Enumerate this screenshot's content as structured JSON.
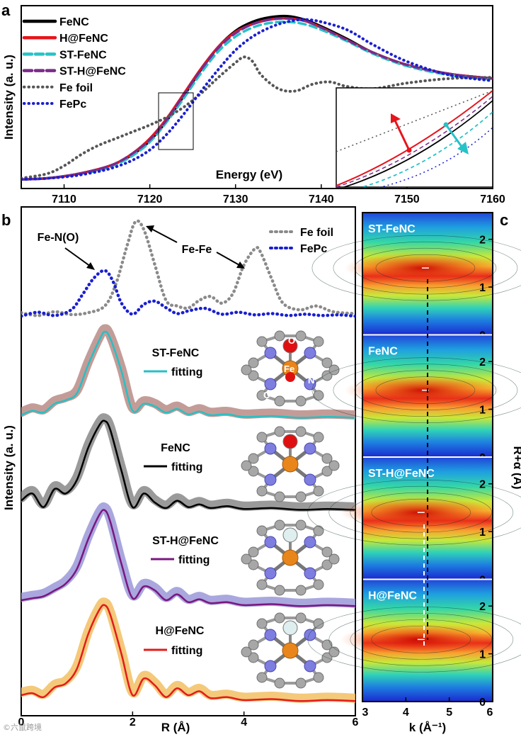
{
  "figure": {
    "panel_labels": [
      "a",
      "b",
      "c"
    ],
    "watermark": "©六鼠跨境"
  },
  "chart_data": [
    {
      "panel": "a",
      "type": "line",
      "xlabel": "Energy (eV)",
      "ylabel": "Intensity (a. u.)",
      "xlim": [
        7105,
        7160
      ],
      "ylim": [
        0,
        1.55
      ],
      "xticks": [
        7110,
        7120,
        7130,
        7140,
        7150,
        7160
      ],
      "legend": "top-left",
      "inset": "zoomed pre-edge region (boxed area)",
      "series": [
        {
          "name": "FeNC",
          "color": "#000000",
          "style": "solid",
          "x": [
            7105,
            7108,
            7111,
            7114,
            7116,
            7118,
            7120,
            7122,
            7124,
            7126,
            7128,
            7130,
            7132,
            7134,
            7136,
            7138,
            7140,
            7143,
            7146,
            7150,
            7155,
            7160
          ],
          "y": [
            0.08,
            0.09,
            0.12,
            0.17,
            0.22,
            0.3,
            0.42,
            0.6,
            0.82,
            1.05,
            1.25,
            1.39,
            1.47,
            1.51,
            1.52,
            1.49,
            1.43,
            1.32,
            1.2,
            1.09,
            1.01,
            0.97
          ]
        },
        {
          "name": "H@FeNC",
          "color": "#e8141c",
          "style": "solid",
          "x": [
            7105,
            7108,
            7111,
            7114,
            7116,
            7118,
            7120,
            7122,
            7124,
            7126,
            7128,
            7130,
            7132,
            7134,
            7136,
            7138,
            7140,
            7143,
            7146,
            7150,
            7155,
            7160
          ],
          "y": [
            0.08,
            0.09,
            0.12,
            0.17,
            0.22,
            0.31,
            0.44,
            0.62,
            0.84,
            1.06,
            1.25,
            1.38,
            1.45,
            1.49,
            1.5,
            1.48,
            1.42,
            1.31,
            1.2,
            1.09,
            1.01,
            0.97
          ]
        },
        {
          "name": "ST-FeNC",
          "color": "#26c2c8",
          "style": "dashed",
          "x": [
            7105,
            7108,
            7111,
            7114,
            7116,
            7118,
            7120,
            7122,
            7124,
            7126,
            7128,
            7130,
            7132,
            7134,
            7136,
            7138,
            7140,
            7143,
            7146,
            7150,
            7155,
            7160
          ],
          "y": [
            0.08,
            0.09,
            0.12,
            0.16,
            0.21,
            0.29,
            0.41,
            0.59,
            0.8,
            1.02,
            1.21,
            1.34,
            1.42,
            1.46,
            1.47,
            1.45,
            1.4,
            1.3,
            1.19,
            1.08,
            1.0,
            0.96
          ]
        },
        {
          "name": "ST-H@FeNC",
          "color": "#7a2a8a",
          "style": "dashed",
          "x": [
            7105,
            7108,
            7111,
            7114,
            7116,
            7118,
            7120,
            7122,
            7124,
            7126,
            7128,
            7130,
            7132,
            7134,
            7136,
            7138,
            7140,
            7143,
            7146,
            7150,
            7155,
            7160
          ],
          "y": [
            0.08,
            0.09,
            0.12,
            0.17,
            0.22,
            0.31,
            0.43,
            0.61,
            0.83,
            1.05,
            1.24,
            1.37,
            1.45,
            1.49,
            1.5,
            1.48,
            1.42,
            1.31,
            1.2,
            1.09,
            1.01,
            0.97
          ]
        },
        {
          "name": "Fe foil",
          "color": "#555555",
          "style": "dotted",
          "x": [
            7105,
            7108,
            7110,
            7112,
            7114,
            7116,
            7118,
            7120,
            7122,
            7124,
            7126,
            7128,
            7130,
            7131,
            7132,
            7133,
            7135,
            7137,
            7139,
            7141,
            7143,
            7146,
            7150,
            7155,
            7160
          ],
          "y": [
            0.09,
            0.13,
            0.2,
            0.3,
            0.38,
            0.44,
            0.5,
            0.56,
            0.63,
            0.72,
            0.84,
            0.98,
            1.11,
            1.16,
            1.12,
            1.0,
            0.88,
            0.86,
            0.92,
            0.94,
            0.9,
            0.88,
            0.93,
            0.97,
            0.98
          ]
        },
        {
          "name": "FePc",
          "color": "#1a1fd0",
          "style": "dotted",
          "x": [
            7105,
            7108,
            7111,
            7114,
            7116,
            7118,
            7120,
            7122,
            7124,
            7126,
            7128,
            7130,
            7132,
            7134,
            7136,
            7138,
            7140,
            7143,
            7146,
            7150,
            7155,
            7160
          ],
          "y": [
            0.08,
            0.09,
            0.11,
            0.15,
            0.19,
            0.25,
            0.34,
            0.48,
            0.66,
            0.86,
            1.05,
            1.22,
            1.34,
            1.42,
            1.47,
            1.49,
            1.47,
            1.4,
            1.27,
            1.12,
            1.0,
            0.95
          ]
        }
      ]
    },
    {
      "panel": "b",
      "type": "line",
      "xlabel": "R (Å)",
      "ylabel": "Intensity (a. u.)",
      "xlim": [
        0,
        6
      ],
      "xticks": [
        0,
        2,
        4,
        6
      ],
      "annotations": [
        "Fe-N(O)",
        "Fe-Fe"
      ],
      "reference_legend": [
        "Fe foil",
        "FePc"
      ],
      "fitting_label": "fitting",
      "series": [
        {
          "name": "Fe foil",
          "color": "#8a8a8a",
          "style": "dotted",
          "x": [
            0,
            0.3,
            0.6,
            0.9,
            1.2,
            1.5,
            1.7,
            1.9,
            2.05,
            2.2,
            2.4,
            2.6,
            2.8,
            3.0,
            3.2,
            3.4,
            3.6,
            3.8,
            4.0,
            4.2,
            4.3,
            4.5,
            4.7,
            5.0,
            5.3,
            5.6,
            6.0
          ],
          "y": [
            0.05,
            0.02,
            0.06,
            0.03,
            0.05,
            0.12,
            0.35,
            0.75,
            1.0,
            0.92,
            0.55,
            0.18,
            0.12,
            0.1,
            0.18,
            0.22,
            0.15,
            0.25,
            0.55,
            0.72,
            0.68,
            0.4,
            0.15,
            0.08,
            0.12,
            0.06,
            0.04
          ]
        },
        {
          "name": "FePc",
          "color": "#1a1fd0",
          "style": "dotted",
          "x": [
            0,
            0.3,
            0.6,
            0.9,
            1.1,
            1.3,
            1.5,
            1.65,
            1.8,
            2.0,
            2.2,
            2.4,
            2.6,
            2.8,
            3.0,
            3.3,
            3.6,
            3.9,
            4.2,
            4.5,
            4.8,
            5.1,
            5.4,
            5.7,
            6.0
          ],
          "y": [
            0.02,
            0.08,
            0.03,
            0.12,
            0.35,
            0.6,
            0.72,
            0.55,
            0.22,
            0.05,
            0.2,
            0.25,
            0.15,
            0.06,
            0.1,
            0.14,
            0.05,
            0.08,
            0.04,
            0.06,
            0.03,
            0.05,
            0.03,
            0.04,
            0.02
          ]
        },
        {
          "name": "ST-FeNC",
          "fit_color": "#27c0c4",
          "data_color": "#b98b86",
          "x": [
            0,
            0.2,
            0.4,
            0.6,
            0.8,
            1.0,
            1.2,
            1.4,
            1.5,
            1.6,
            1.8,
            2.0,
            2.2,
            2.4,
            2.6,
            2.8,
            3.0,
            3.2,
            3.4,
            3.7,
            4.0,
            4.5,
            5.0,
            5.5,
            6.0
          ],
          "y": [
            0.05,
            0.1,
            0.08,
            0.18,
            0.22,
            0.3,
            0.62,
            0.9,
            1.0,
            0.92,
            0.55,
            0.1,
            0.18,
            0.15,
            0.08,
            0.12,
            0.06,
            0.09,
            0.05,
            0.06,
            0.03,
            0.04,
            0.02,
            0.03,
            0.02
          ]
        },
        {
          "name": "FeNC",
          "fit_color": "#000000",
          "data_color": "#888888",
          "x": [
            0,
            0.2,
            0.4,
            0.6,
            0.8,
            1.0,
            1.2,
            1.4,
            1.5,
            1.6,
            1.8,
            2.0,
            2.2,
            2.4,
            2.6,
            2.8,
            3.0,
            3.2,
            3.4,
            3.7,
            4.0,
            4.5,
            5.0,
            5.5,
            6.0
          ],
          "y": [
            0.12,
            0.2,
            0.05,
            0.25,
            0.2,
            0.35,
            0.7,
            0.95,
            1.0,
            0.9,
            0.45,
            0.05,
            0.2,
            0.1,
            0.04,
            0.12,
            0.05,
            0.08,
            0.04,
            0.06,
            0.03,
            0.04,
            0.02,
            0.03,
            0.02
          ]
        },
        {
          "name": "ST-H@FeNC",
          "fit_color": "#7b1780",
          "data_color": "#9a98d8",
          "x": [
            0,
            0.2,
            0.4,
            0.6,
            0.8,
            1.0,
            1.2,
            1.4,
            1.5,
            1.6,
            1.8,
            2.0,
            2.2,
            2.4,
            2.6,
            2.8,
            3.0,
            3.2,
            3.4,
            3.7,
            4.0,
            4.5,
            5.0,
            5.5,
            6.0
          ],
          "y": [
            0.08,
            0.1,
            0.12,
            0.18,
            0.25,
            0.4,
            0.7,
            0.95,
            1.0,
            0.88,
            0.45,
            0.1,
            0.22,
            0.18,
            0.08,
            0.14,
            0.06,
            0.09,
            0.05,
            0.06,
            0.03,
            0.04,
            0.02,
            0.03,
            0.02
          ]
        },
        {
          "name": "H@FeNC",
          "fit_color": "#e31b1b",
          "data_color": "#f2c063",
          "x": [
            0,
            0.2,
            0.4,
            0.6,
            0.8,
            1.0,
            1.2,
            1.4,
            1.5,
            1.6,
            1.8,
            2.0,
            2.2,
            2.4,
            2.6,
            2.8,
            3.0,
            3.2,
            3.4,
            3.7,
            4.0,
            4.5,
            5.0,
            5.5,
            6.0
          ],
          "y": [
            0.08,
            0.1,
            0.06,
            0.16,
            0.2,
            0.35,
            0.7,
            0.95,
            1.0,
            0.9,
            0.5,
            0.08,
            0.25,
            0.18,
            0.06,
            0.15,
            0.08,
            0.12,
            0.05,
            0.06,
            0.03,
            0.04,
            0.02,
            0.03,
            0.02
          ]
        }
      ],
      "atom_labels": [
        "O",
        "Fe",
        "N",
        "C"
      ]
    },
    {
      "panel": "c",
      "type": "heatmap",
      "xlabel": "k (Å⁻¹)",
      "ylabel": "R+α (Å)",
      "xlim": [
        3,
        6
      ],
      "ylim": [
        0,
        2.5
      ],
      "xticks": [
        3,
        4,
        5,
        6
      ],
      "yticks": [
        0,
        1,
        2
      ],
      "maps": [
        {
          "name": "ST-FeNC",
          "peak_k": 4.45,
          "peak_R": 1.4
        },
        {
          "name": "FeNC",
          "peak_k": 4.45,
          "peak_R": 1.4
        },
        {
          "name": "ST-H@FeNC",
          "peak_k": 4.35,
          "peak_R": 1.4
        },
        {
          "name": "H@FeNC",
          "peak_k": 4.35,
          "peak_R": 1.3
        }
      ]
    }
  ]
}
